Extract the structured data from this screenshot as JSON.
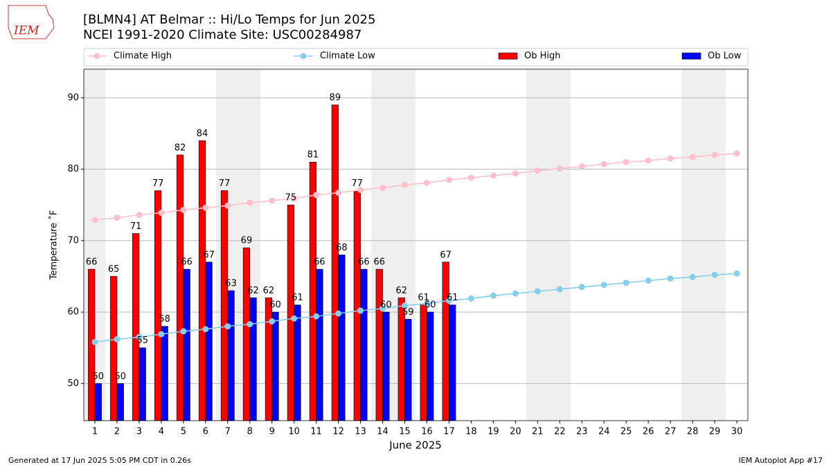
{
  "chart_data": {
    "type": "bar_line",
    "logo_text": "IEM",
    "title": "[BLMN4] AT Belmar :: Hi/Lo Temps for Jun 2025",
    "subtitle": "NCEI 1991-2020 Climate Site: USC00284987",
    "y_label": "Temperature ˚F",
    "x_label": "June 2025",
    "footer_left": "Generated at 17 Jun 2025 5:05 PM CDT in 0.26s",
    "footer_right": "IEM Autoplot App #17",
    "x": [
      1,
      2,
      3,
      4,
      5,
      6,
      7,
      8,
      9,
      10,
      11,
      12,
      13,
      14,
      15,
      16,
      17,
      18,
      19,
      20,
      21,
      22,
      23,
      24,
      25,
      26,
      27,
      28,
      29,
      30
    ],
    "xlim": [
      0.5,
      30.5
    ],
    "xticks": [
      1,
      2,
      3,
      4,
      5,
      6,
      7,
      8,
      9,
      10,
      11,
      12,
      13,
      14,
      15,
      16,
      17,
      18,
      19,
      20,
      21,
      22,
      23,
      24,
      25,
      26,
      27,
      28,
      29,
      30
    ],
    "ylim": [
      44.8,
      94
    ],
    "yticks": [
      50,
      60,
      70,
      80,
      90
    ],
    "grid": true,
    "series": [
      {
        "name": "Climate High",
        "kind": "line",
        "color": "#ffc0cb",
        "values": [
          72.9,
          73.2,
          73.6,
          73.9,
          74.3,
          74.6,
          74.9,
          75.3,
          75.6,
          75.9,
          76.4,
          76.7,
          77.1,
          77.4,
          77.8,
          78.1,
          78.5,
          78.8,
          79.1,
          79.4,
          79.8,
          80.1,
          80.4,
          80.7,
          81.0,
          81.2,
          81.5,
          81.7,
          82.0,
          82.2
        ]
      },
      {
        "name": "Climate Low",
        "kind": "line",
        "color": "#87ceeb",
        "values": [
          55.8,
          56.2,
          56.5,
          56.9,
          57.3,
          57.6,
          58.0,
          58.3,
          58.7,
          59.1,
          59.4,
          59.8,
          60.2,
          60.5,
          60.9,
          61.2,
          61.6,
          61.9,
          62.3,
          62.6,
          62.9,
          63.2,
          63.5,
          63.8,
          64.1,
          64.4,
          64.7,
          64.9,
          65.2,
          65.4
        ]
      },
      {
        "name": "Ob High",
        "kind": "bar",
        "color": "#ff0000",
        "values": [
          66,
          65,
          71,
          77,
          82,
          84,
          77,
          69,
          62,
          75,
          81,
          89,
          77,
          66,
          62,
          61,
          67,
          null,
          null,
          null,
          null,
          null,
          null,
          null,
          null,
          null,
          null,
          null,
          null,
          null
        ]
      },
      {
        "name": "Ob Low",
        "kind": "bar",
        "color": "#0000ff",
        "values": [
          50,
          50,
          55,
          58,
          66,
          67,
          63,
          62,
          60,
          61,
          66,
          68,
          66,
          60,
          59,
          60,
          61,
          null,
          null,
          null,
          null,
          null,
          null,
          null,
          null,
          null,
          null,
          null,
          null,
          null
        ]
      }
    ]
  }
}
